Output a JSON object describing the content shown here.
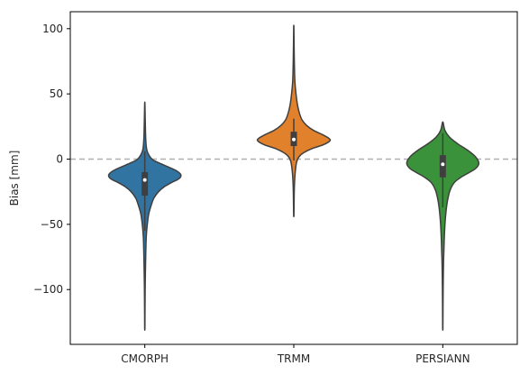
{
  "chart_data": {
    "type": "violin",
    "title": "",
    "xlabel": "",
    "ylabel": "Bias [mm]",
    "ylim": [
      -142,
      113
    ],
    "yticks": [
      100,
      50,
      0,
      -50,
      -100
    ],
    "ytick_labels": [
      "100",
      "50",
      "0",
      "−50",
      "−100"
    ],
    "grid": false,
    "reference_line": {
      "y": 0,
      "style": "dashed",
      "color": "#b0b0b0"
    },
    "categories": [
      "CMORPH",
      "TRMM",
      "PERSIANN"
    ],
    "series": [
      {
        "category": "CMORPH",
        "color": "#3274a1",
        "min": -130,
        "max": 42,
        "q1": -28,
        "median": -16,
        "q3": -10,
        "whisker_low": -55,
        "whisker_high": 6,
        "density": [
          [
            42,
            0.004
          ],
          [
            20,
            0.02
          ],
          [
            10,
            0.04
          ],
          [
            5,
            0.08
          ],
          [
            0,
            0.2
          ],
          [
            -3,
            0.4
          ],
          [
            -6,
            0.65
          ],
          [
            -9,
            0.88
          ],
          [
            -12,
            1.0
          ],
          [
            -15,
            0.95
          ],
          [
            -18,
            0.74
          ],
          [
            -21,
            0.55
          ],
          [
            -25,
            0.38
          ],
          [
            -30,
            0.25
          ],
          [
            -36,
            0.17
          ],
          [
            -42,
            0.11
          ],
          [
            -50,
            0.07
          ],
          [
            -60,
            0.04
          ],
          [
            -75,
            0.025
          ],
          [
            -95,
            0.012
          ],
          [
            -115,
            0.006
          ],
          [
            -130,
            0.003
          ]
        ]
      },
      {
        "category": "TRMM",
        "color": "#e1812c",
        "min": -43,
        "max": 101,
        "q1": 10,
        "median": 15,
        "q3": 21,
        "whisker_low": -1,
        "whisker_high": 31,
        "density": [
          [
            101,
            0.003
          ],
          [
            80,
            0.012
          ],
          [
            60,
            0.03
          ],
          [
            48,
            0.07
          ],
          [
            42,
            0.1
          ],
          [
            38,
            0.13
          ],
          [
            34,
            0.17
          ],
          [
            30,
            0.23
          ],
          [
            26,
            0.35
          ],
          [
            22,
            0.55
          ],
          [
            19,
            0.78
          ],
          [
            16,
            0.97
          ],
          [
            14,
            1.0
          ],
          [
            11,
            0.82
          ],
          [
            8,
            0.5
          ],
          [
            5,
            0.28
          ],
          [
            2,
            0.15
          ],
          [
            -2,
            0.08
          ],
          [
            -10,
            0.04
          ],
          [
            -20,
            0.018
          ],
          [
            -30,
            0.01
          ],
          [
            -43,
            0.004
          ]
        ]
      },
      {
        "category": "PERSIANN",
        "color": "#3a923a",
        "min": -130,
        "max": 28,
        "q1": -14,
        "median": -4,
        "q3": 3,
        "whisker_low": -37,
        "whisker_high": 20,
        "density": [
          [
            28,
            0.01
          ],
          [
            22,
            0.06
          ],
          [
            17,
            0.18
          ],
          [
            12,
            0.4
          ],
          [
            7,
            0.68
          ],
          [
            2,
            0.9
          ],
          [
            -3,
            1.0
          ],
          [
            -7,
            0.92
          ],
          [
            -10,
            0.75
          ],
          [
            -14,
            0.5
          ],
          [
            -18,
            0.32
          ],
          [
            -24,
            0.2
          ],
          [
            -32,
            0.13
          ],
          [
            -40,
            0.09
          ],
          [
            -50,
            0.06
          ],
          [
            -62,
            0.04
          ],
          [
            -80,
            0.02
          ],
          [
            -100,
            0.01
          ],
          [
            -115,
            0.006
          ],
          [
            -130,
            0.003
          ]
        ]
      }
    ]
  }
}
